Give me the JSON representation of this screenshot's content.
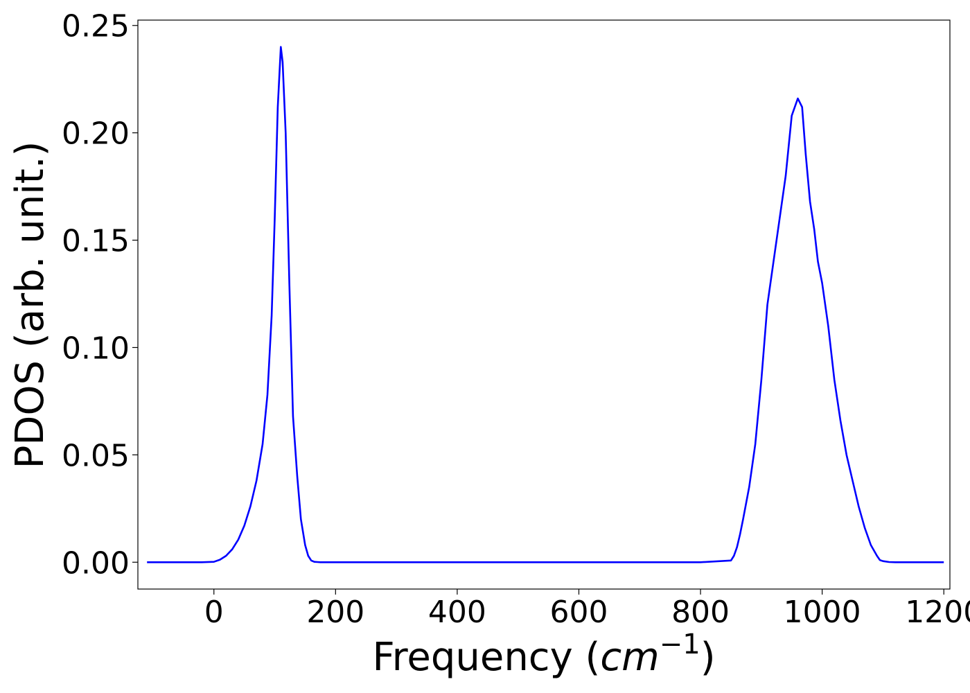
{
  "chart_data": {
    "type": "line",
    "title": "",
    "xlabel": {
      "main": "Frequency (",
      "unit_base": "cm",
      "unit_exp": "−1",
      "close": ")"
    },
    "ylabel": "PDOS (arb. unit.)",
    "xlim": [
      -125,
      1210
    ],
    "ylim": [
      -0.0125,
      0.2525
    ],
    "x_ticks": [
      0,
      200,
      400,
      600,
      800,
      1000,
      1200
    ],
    "x_tick_labels": [
      "0",
      "200",
      "400",
      "600",
      "800",
      "1000",
      "1200"
    ],
    "y_ticks": [
      0.0,
      0.05,
      0.1,
      0.15,
      0.2,
      0.25
    ],
    "y_tick_labels": [
      "0.00",
      "0.05",
      "0.10",
      "0.15",
      "0.20",
      "0.25"
    ],
    "grid": false,
    "series": [
      {
        "color": "#0000ff",
        "x": [
          -110,
          -60,
          -20,
          0,
          10,
          20,
          30,
          40,
          50,
          60,
          70,
          80,
          88,
          95,
          100,
          105,
          110,
          113,
          118,
          124,
          130,
          137,
          143,
          150,
          155,
          160,
          165,
          170,
          175,
          180,
          190,
          200,
          400,
          600,
          800,
          850,
          855,
          860,
          865,
          870,
          880,
          890,
          900,
          910,
          920,
          930,
          940,
          950,
          960,
          967,
          973,
          980,
          987,
          993,
          1000,
          1010,
          1020,
          1030,
          1040,
          1050,
          1060,
          1070,
          1080,
          1090,
          1095,
          1100,
          1110,
          1120,
          1200
        ],
        "y": [
          0,
          0,
          0,
          0.0002,
          0.0012,
          0.003,
          0.006,
          0.0105,
          0.017,
          0.026,
          0.038,
          0.055,
          0.078,
          0.115,
          0.16,
          0.212,
          0.24,
          0.233,
          0.2,
          0.13,
          0.068,
          0.04,
          0.02,
          0.008,
          0.003,
          0.0008,
          0.0002,
          0.0001,
          0,
          0,
          0,
          0,
          0,
          0,
          0,
          0.0008,
          0.003,
          0.007,
          0.013,
          0.02,
          0.035,
          0.055,
          0.085,
          0.12,
          0.14,
          0.16,
          0.18,
          0.208,
          0.216,
          0.212,
          0.19,
          0.168,
          0.155,
          0.14,
          0.13,
          0.11,
          0.085,
          0.066,
          0.05,
          0.038,
          0.026,
          0.016,
          0.008,
          0.003,
          0.001,
          0.0005,
          0.0001,
          0,
          0
        ]
      }
    ]
  }
}
